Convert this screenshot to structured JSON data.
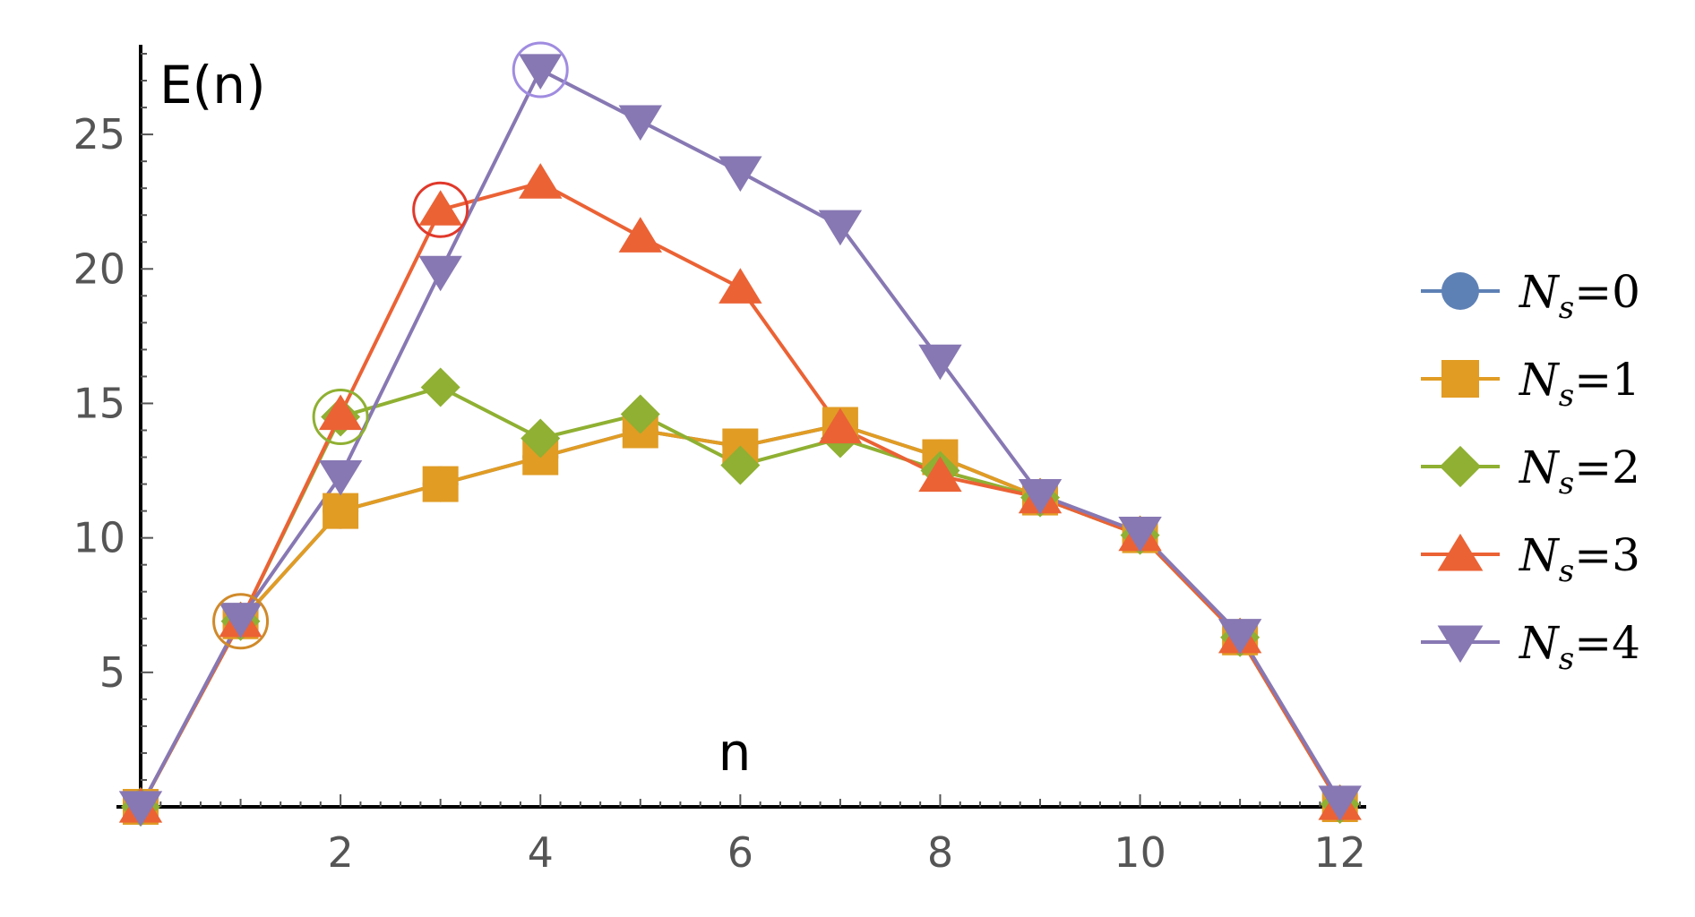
{
  "chart_data": {
    "type": "line",
    "xlabel": "n",
    "ylabel": "E(n)",
    "xlim": [
      0,
      12.2
    ],
    "ylim": [
      0,
      28
    ],
    "xticks": [
      2,
      4,
      6,
      8,
      10,
      12
    ],
    "yticks": [
      5,
      10,
      15,
      20,
      25
    ],
    "xtick_labels": [
      "2",
      "4",
      "6",
      "8",
      "10",
      "12"
    ],
    "ytick_labels": [
      "5",
      "10",
      "15",
      "20",
      "25"
    ],
    "legend_placement": "right",
    "grid": false,
    "series": [
      {
        "name": "N_s=0",
        "legend_main": "N",
        "legend_sub": "s",
        "legend_value": "=0",
        "marker": "circle",
        "color": "#5e81b5",
        "x": [
          0,
          1,
          2,
          3,
          4,
          5,
          6,
          7,
          8,
          9,
          10,
          11,
          12
        ],
        "y": [
          0,
          6.9,
          11.0,
          12.0,
          13.0,
          14.0,
          13.4,
          14.2,
          13.0,
          11.5,
          10.1,
          6.3,
          0.1
        ]
      },
      {
        "name": "N_s=1",
        "legend_main": "N",
        "legend_sub": "s",
        "legend_value": "=1",
        "marker": "square",
        "color": "#e19c24",
        "x": [
          0,
          1,
          2,
          3,
          4,
          5,
          6,
          7,
          8,
          9,
          10,
          11,
          12
        ],
        "y": [
          0,
          6.9,
          11.0,
          12.0,
          13.0,
          14.0,
          13.4,
          14.2,
          13.0,
          11.5,
          10.1,
          6.3,
          0.1
        ]
      },
      {
        "name": "N_s=2",
        "legend_main": "N",
        "legend_sub": "s",
        "legend_value": "=2",
        "marker": "diamond",
        "color": "#8fb032",
        "x": [
          0,
          1,
          2,
          3,
          4,
          5,
          6,
          7,
          8,
          9,
          10,
          11,
          12
        ],
        "y": [
          0,
          6.9,
          14.5,
          15.6,
          13.7,
          14.6,
          12.7,
          13.7,
          12.5,
          11.5,
          10.1,
          6.3,
          0.1
        ]
      },
      {
        "name": "N_s=3",
        "legend_main": "N",
        "legend_sub": "s",
        "legend_value": "=3",
        "marker": "triangle-up",
        "color": "#eb6235",
        "x": [
          0,
          1,
          2,
          3,
          4,
          5,
          6,
          7,
          8,
          9,
          10,
          11,
          12
        ],
        "y": [
          0,
          6.9,
          14.6,
          22.2,
          23.2,
          21.2,
          19.3,
          14.1,
          12.3,
          11.5,
          10.1,
          6.3,
          0.1
        ]
      },
      {
        "name": "N_s=4",
        "legend_main": "N",
        "legend_sub": "s",
        "legend_value": "=4",
        "marker": "triangle-down",
        "color": "#8778b3",
        "x": [
          0,
          1,
          2,
          3,
          4,
          5,
          6,
          7,
          8,
          9,
          10,
          11,
          12
        ],
        "y": [
          0,
          7.0,
          12.3,
          19.9,
          27.4,
          25.5,
          23.6,
          21.6,
          16.6,
          11.6,
          10.2,
          6.4,
          0.2
        ]
      }
    ],
    "highlights": [
      {
        "x": 1,
        "y": 6.9,
        "color": "#d08a2a"
      },
      {
        "x": 2,
        "y": 14.5,
        "color": "#8fb032"
      },
      {
        "x": 3,
        "y": 22.2,
        "color": "#e0392b"
      },
      {
        "x": 4,
        "y": 27.4,
        "color": "#a08ce0"
      }
    ]
  }
}
